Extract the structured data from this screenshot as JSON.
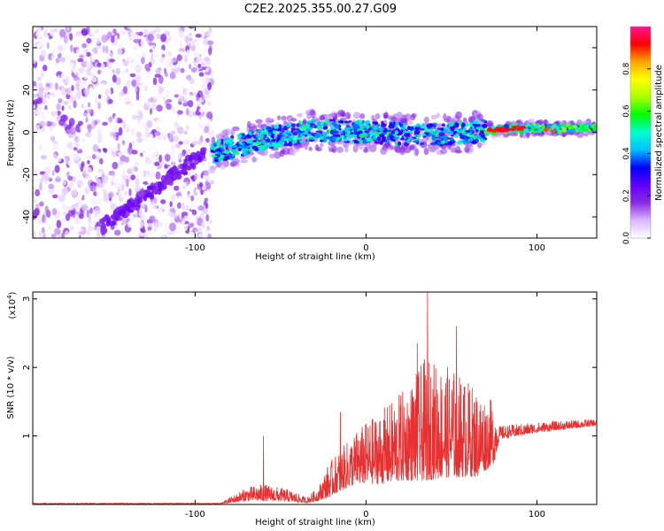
{
  "title": "C2E2.2025.355.00.27.G09",
  "chart_data": [
    {
      "type": "heatmap",
      "name": "spectrogram",
      "xlabel": "Height of straight line (km)",
      "ylabel": "Frequency (Hz)",
      "xlim": [
        -195,
        135
      ],
      "ylim": [
        -50,
        50
      ],
      "xticks": [
        -100,
        0,
        100
      ],
      "yticks": [
        -40,
        -20,
        0,
        20,
        40
      ],
      "colorbar": {
        "label": "Normalized spectral amplitude",
        "range": [
          0,
          1
        ],
        "ticks": [
          "0.0",
          "0.2",
          "0.4",
          "0.6",
          "0.8"
        ],
        "tick_values": [
          0.0,
          0.2,
          0.4,
          0.6,
          0.8
        ],
        "colors": [
          "#ffffff",
          "#d8b8ff",
          "#8a2be2",
          "#6000ff",
          "#0000ff",
          "#00bfff",
          "#00ffd0",
          "#00ff00",
          "#aaff00",
          "#ffff00",
          "#ffa500",
          "#ff0000",
          "#ff1493"
        ]
      },
      "regions": [
        {
          "description": "scattered noise",
          "x_range": [
            -195,
            -90
          ],
          "freq_range": [
            -50,
            50
          ]
        },
        {
          "description": "signal trace",
          "x_range": [
            -90,
            135
          ],
          "freq_center_at": [
            [
              -90,
              -10
            ],
            [
              -60,
              -3
            ],
            [
              -30,
              1
            ],
            [
              0,
              0
            ],
            [
              30,
              -1
            ],
            [
              60,
              0
            ],
            [
              70,
              1
            ],
            [
              100,
              2
            ],
            [
              135,
              2
            ]
          ]
        }
      ]
    },
    {
      "type": "line",
      "name": "snr",
      "xlabel": "Height of straight line (km)",
      "ylabel": "SNR (10 * v/v)",
      "ylabel_scale": "(x10",
      "ylabel_scale_exp": "4",
      "xlim": [
        -195,
        135
      ],
      "ylim": [
        0,
        3.1
      ],
      "xticks": [
        -100,
        0,
        100
      ],
      "yticks": [
        1,
        2,
        3
      ],
      "color": "#e83030",
      "envelope": [
        {
          "x": -195,
          "base": 0.01,
          "amp": 0.01
        },
        {
          "x": -85,
          "base": 0.01,
          "amp": 0.01
        },
        {
          "x": -80,
          "base": 0.02,
          "amp": 0.08
        },
        {
          "x": -70,
          "base": 0.05,
          "amp": 0.2
        },
        {
          "x": -60,
          "base": 0.05,
          "amp": 0.25
        },
        {
          "x": -45,
          "base": 0.04,
          "amp": 0.18
        },
        {
          "x": -35,
          "base": 0.02,
          "amp": 0.08
        },
        {
          "x": -28,
          "base": 0.05,
          "amp": 0.2
        },
        {
          "x": -22,
          "base": 0.1,
          "amp": 0.5
        },
        {
          "x": -15,
          "base": 0.2,
          "amp": 0.6
        },
        {
          "x": -5,
          "base": 0.3,
          "amp": 0.8
        },
        {
          "x": 10,
          "base": 0.3,
          "amp": 1.1
        },
        {
          "x": 25,
          "base": 0.35,
          "amp": 1.4
        },
        {
          "x": 35,
          "base": 0.35,
          "amp": 1.8
        },
        {
          "x": 50,
          "base": 0.4,
          "amp": 1.6
        },
        {
          "x": 65,
          "base": 0.4,
          "amp": 1.3
        },
        {
          "x": 75,
          "base": 0.6,
          "amp": 0.9
        },
        {
          "x": 78,
          "base": 0.95,
          "amp": 0.2
        },
        {
          "x": 100,
          "base": 1.05,
          "amp": 0.15
        },
        {
          "x": 135,
          "base": 1.15,
          "amp": 0.1
        }
      ],
      "peaks": [
        {
          "x": 36,
          "y": 3.1
        },
        {
          "x": 53,
          "y": 2.6
        },
        {
          "x": 30,
          "y": 2.35
        },
        {
          "x": -15,
          "y": 1.35
        },
        {
          "x": -60,
          "y": 1.0
        }
      ]
    }
  ]
}
